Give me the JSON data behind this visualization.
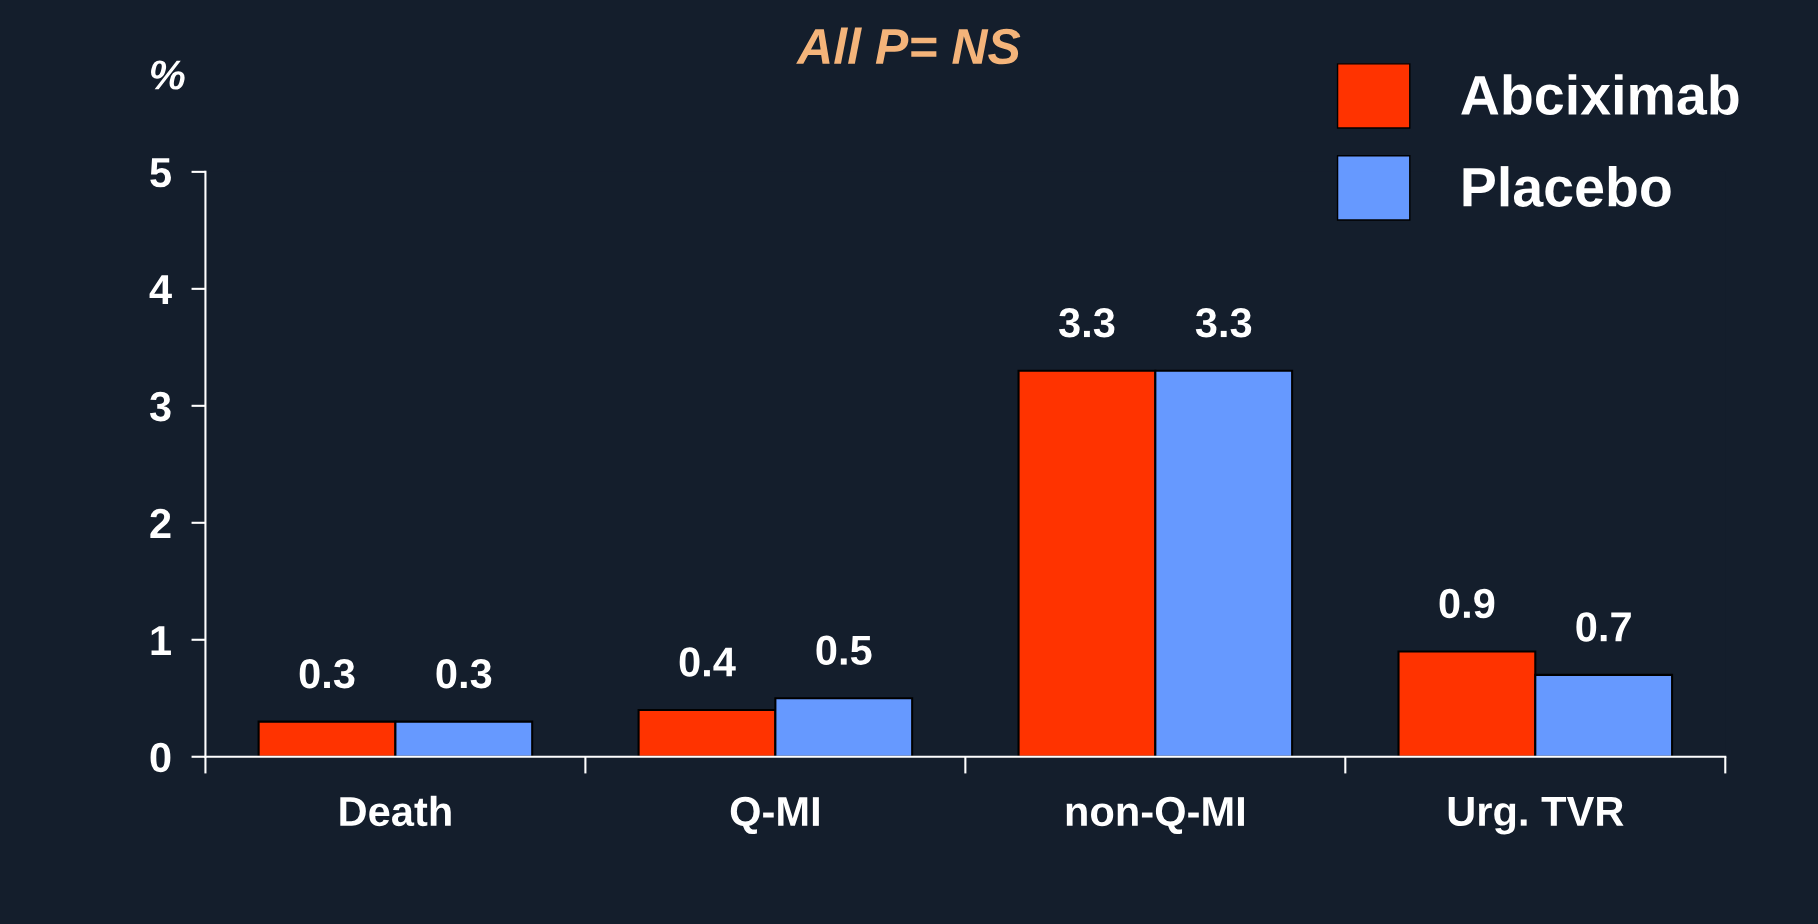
{
  "chart_data": {
    "type": "bar",
    "title": "All P= NS",
    "ylabel": "%",
    "categories": [
      "Death",
      "Q-MI",
      "non-Q-MI",
      "Urg. TVR"
    ],
    "series": [
      {
        "name": "Abciximab",
        "color": "#ff3300",
        "values": [
          0.3,
          0.4,
          3.3,
          0.9
        ]
      },
      {
        "name": "Placebo",
        "color": "#6699ff",
        "values": [
          0.3,
          0.5,
          3.3,
          0.7
        ]
      }
    ],
    "ylim": [
      0,
      5
    ],
    "yticks": [
      0,
      1,
      2,
      3,
      4,
      5
    ],
    "grid": false,
    "legend": "top right",
    "data_labels": true
  }
}
